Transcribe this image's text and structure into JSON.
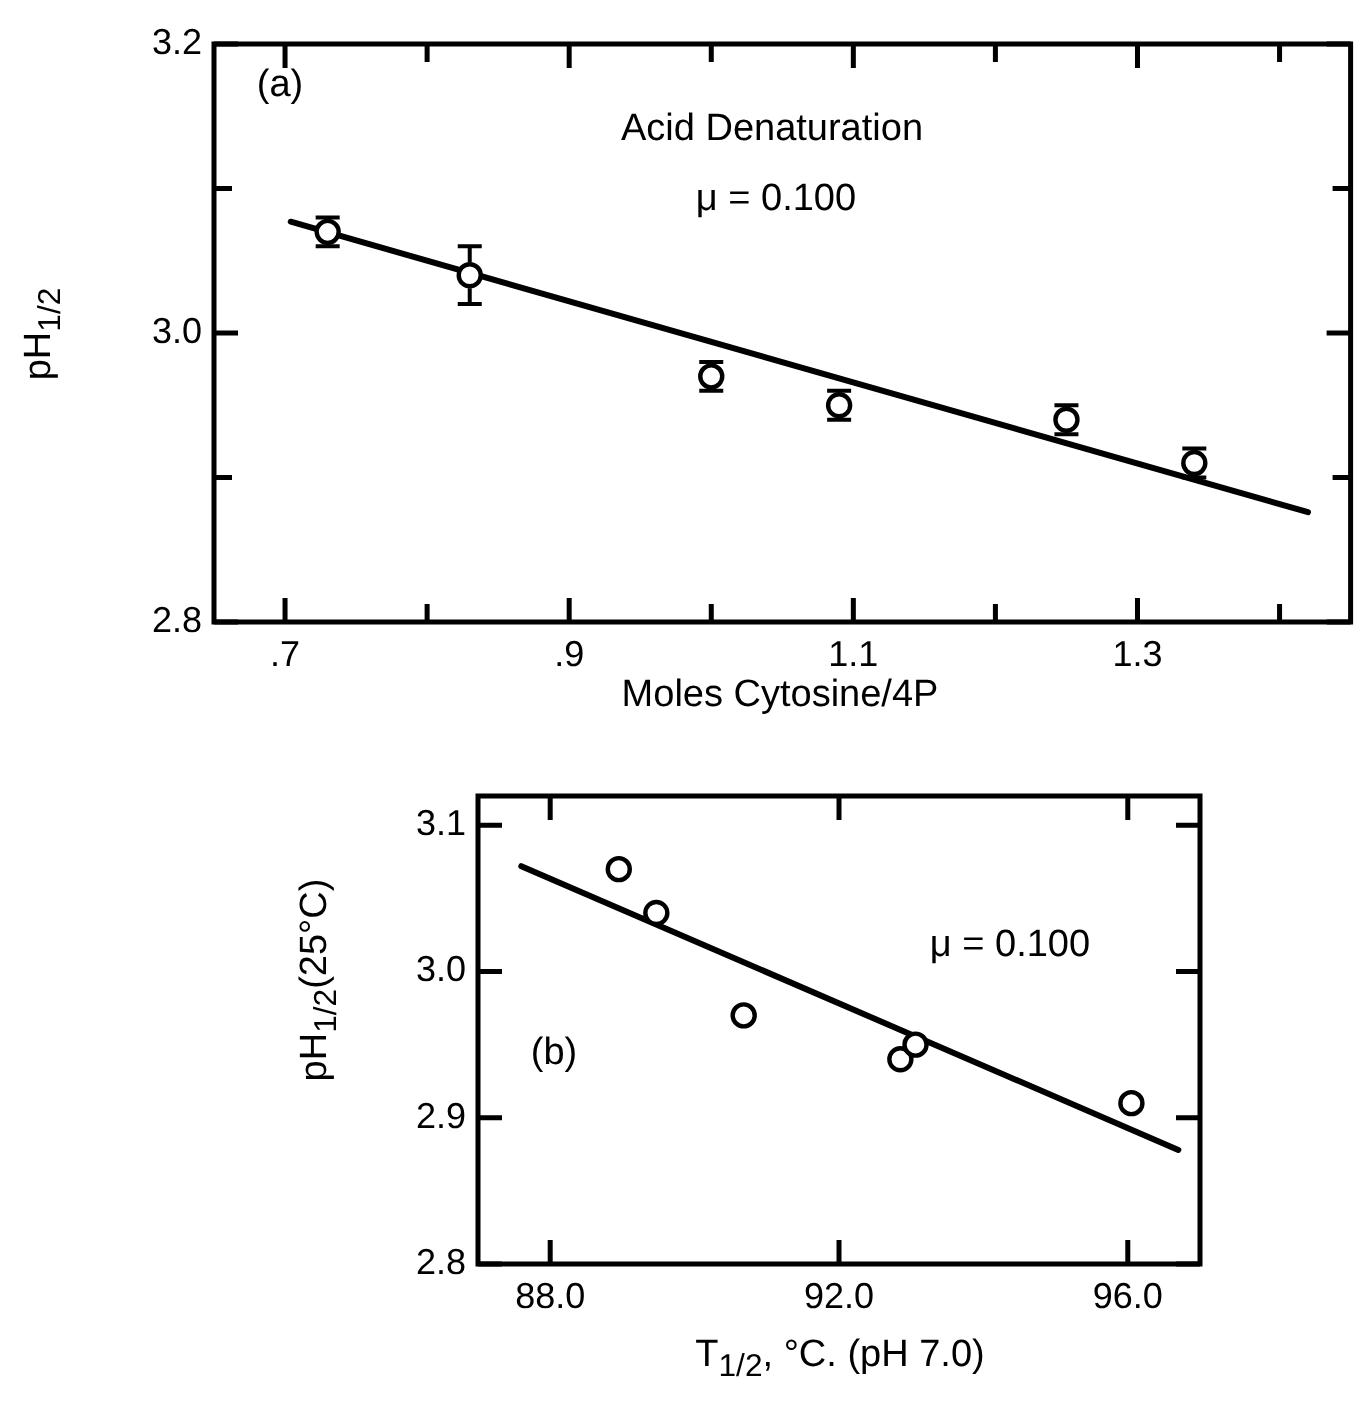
{
  "chart_data": [
    {
      "type": "scatter",
      "xlabel": "Moles Cytosine/4P",
      "ylabel": "pH$_{1/2}$",
      "annotations": [
        "(a)",
        "Acid Denaturation",
        "μ = 0.100"
      ],
      "xlim": [
        0.65,
        1.45
      ],
      "ylim": [
        2.8,
        3.2
      ],
      "xticks": [
        {
          "value": 0.7,
          "label": ".7"
        },
        {
          "value": 0.8,
          "label": null
        },
        {
          "value": 0.9,
          "label": ".9"
        },
        {
          "value": 1.0,
          "label": null
        },
        {
          "value": 1.1,
          "label": "1.1"
        },
        {
          "value": 1.2,
          "label": null
        },
        {
          "value": 1.3,
          "label": "1.3"
        },
        {
          "value": 1.4,
          "label": null
        }
      ],
      "yticks": [
        {
          "value": 2.8,
          "label": "2.8"
        },
        {
          "value": 2.9,
          "label": null
        },
        {
          "value": 3.0,
          "label": "3.0"
        },
        {
          "value": 3.1,
          "label": null
        },
        {
          "value": 3.2,
          "label": "3.2"
        }
      ],
      "grid": false,
      "legend": false,
      "series": [
        {
          "type": "scatter",
          "color": "#000000",
          "x": [
            0.73,
            0.83,
            1.0,
            1.09,
            1.25,
            1.34
          ],
          "values": [
            3.07,
            3.04,
            2.97,
            2.95,
            2.94,
            2.91
          ],
          "errors": [
            0.01,
            0.02,
            0.01,
            0.01,
            0.01,
            0.01
          ]
        },
        {
          "type": "line",
          "marker": "none",
          "color": "#000000",
          "x": [
            0.704,
            1.42
          ],
          "values": [
            3.077,
            2.876
          ]
        }
      ]
    },
    {
      "type": "scatter",
      "xlabel": "T$_{1/2}$, °C. (pH 7.0)",
      "ylabel": "pH$_{1/2}$(25°C)",
      "annotations": [
        "μ = 0.100",
        "(b)"
      ],
      "xlim": [
        87.0,
        97.0
      ],
      "ylim": [
        2.8,
        3.12
      ],
      "xticks": [
        {
          "value": 88,
          "label": "88.0"
        },
        {
          "value": 92,
          "label": "92.0"
        },
        {
          "value": 96,
          "label": "96.0"
        }
      ],
      "yticks": [
        {
          "value": 2.8,
          "label": "2.8"
        },
        {
          "value": 2.9,
          "label": "2.9"
        },
        {
          "value": 3.0,
          "label": "3.0"
        },
        {
          "value": 3.1,
          "label": "3.1"
        }
      ],
      "grid": false,
      "legend": false,
      "series": [
        {
          "type": "scatter",
          "marker": "circle",
          "color": "#000000",
          "x": [
            88.95,
            89.47,
            90.68,
            92.85,
            93.06,
            96.05
          ],
          "values": [
            3.07,
            3.04,
            2.97,
            2.94,
            2.95,
            2.91
          ]
        },
        {
          "type": "line",
          "marker": "none",
          "color": "#000000",
          "x": [
            87.6,
            96.7
          ],
          "values": [
            3.072,
            2.878
          ]
        }
      ]
    }
  ]
}
